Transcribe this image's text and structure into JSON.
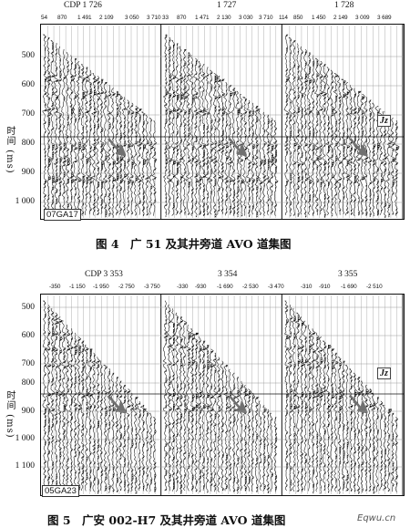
{
  "figure4": {
    "panel_titles": [
      "CDP 1 726",
      "1 727",
      "1 728"
    ],
    "offset_labels": [
      [
        "54",
        "870",
        "1 491",
        "2 109",
        "3 050",
        "3 710"
      ],
      [
        "33",
        "870",
        "1 471",
        "2 130",
        "3 030",
        "3 710"
      ],
      [
        "114",
        "850",
        "1 450",
        "2 149",
        "3 009",
        "3 689"
      ]
    ],
    "time_ticks": [
      "500",
      "600",
      "700",
      "800",
      "900",
      "1 000"
    ],
    "y_axis_label": "时间 (ms)",
    "corner_label": "07GA17",
    "marker_label": "Jz",
    "caption": "图 4　广 51 及其井旁道 AVO 道集图"
  },
  "figure5": {
    "panel_titles": [
      "CDP 3 353",
      "3 354",
      "3 355"
    ],
    "offset_labels": [
      [
        "-350",
        "-1 150",
        "-1 950",
        "-2 750",
        "-3 750"
      ],
      [
        "-330",
        "-930",
        "-1 690",
        "-2 530",
        "-3 470"
      ],
      [
        "-310",
        "-910",
        "-1 690",
        "-2 510"
      ]
    ],
    "time_ticks": [
      "500",
      "600",
      "700",
      "800",
      "900",
      "1 000",
      "1 100"
    ],
    "y_axis_label": "时间 (ms)",
    "corner_label": "05GA23",
    "marker_label": "Jz",
    "caption": "图 5　广安 002-H7 及其井旁道 AVO 道集图"
  },
  "watermark": "Eqwu.cn",
  "colors": {
    "ink": "#111111",
    "arrow": "#707070",
    "grid": "#9a9a9a"
  }
}
